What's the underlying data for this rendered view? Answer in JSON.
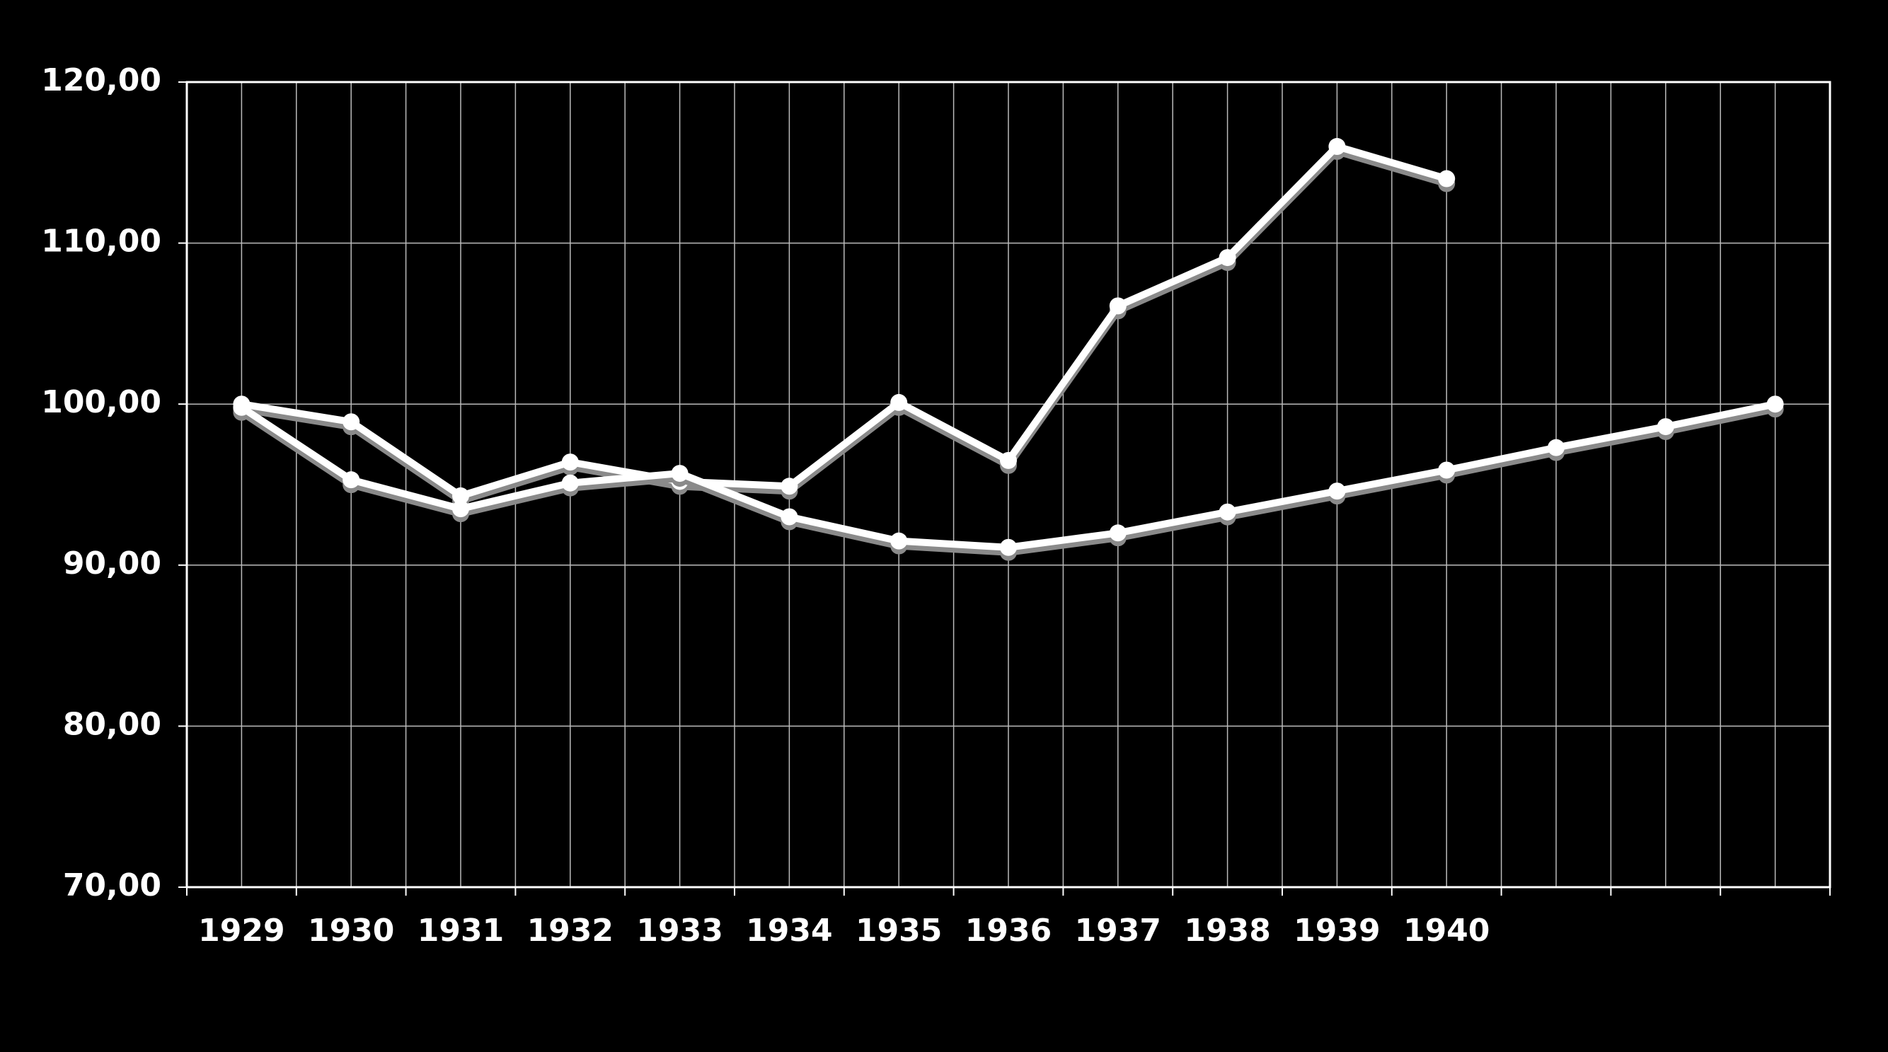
{
  "chart_data": {
    "type": "line",
    "categories": [
      "1929",
      "1930",
      "1931",
      "1932",
      "1933",
      "1934",
      "1935",
      "1936",
      "1937",
      "1938",
      "1939",
      "1940",
      null,
      null,
      null
    ],
    "series": [
      {
        "color": "#ffffff",
        "values": [
          100.0,
          98.9,
          94.3,
          96.4,
          95.2,
          94.9,
          100.1,
          96.5,
          106.1,
          109.1,
          116.0,
          114.0,
          null,
          null,
          null
        ]
      },
      {
        "color": "#ffffff",
        "values": [
          99.8,
          95.3,
          93.5,
          95.1,
          95.7,
          93.0,
          91.5,
          91.1,
          92.0,
          93.3,
          94.6,
          95.9,
          97.3,
          98.6,
          100.0
        ]
      }
    ],
    "ylim": [
      70,
      120
    ],
    "yticks": [
      {
        "value": 70,
        "label": "70,00"
      },
      {
        "value": 80,
        "label": "80,00"
      },
      {
        "value": 90,
        "label": "90,00"
      },
      {
        "value": 100,
        "label": "100,00"
      },
      {
        "value": 110,
        "label": "110,00"
      },
      {
        "value": 120,
        "label": "120,00"
      }
    ],
    "grid": true
  }
}
